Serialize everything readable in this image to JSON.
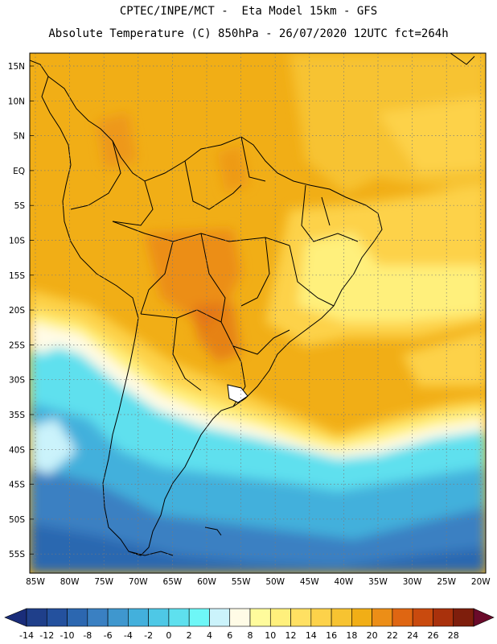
{
  "title": {
    "line1": "CPTEC/INPE/MCT -  Eta Model 15km - GFS",
    "line2": "Absolute Temperature (C) 850hPa - 26/07/2020 12UTC fct=264h"
  },
  "axes": {
    "lat_labels": [
      "15N",
      "10N",
      "5N",
      "EQ",
      "5S",
      "10S",
      "15S",
      "20S",
      "25S",
      "30S",
      "35S",
      "40S",
      "45S",
      "50S",
      "55S"
    ],
    "lon_labels": [
      "85W",
      "80W",
      "75W",
      "70W",
      "65W",
      "60W",
      "55W",
      "50W",
      "45W",
      "40W",
      "35W",
      "30W",
      "25W",
      "20W"
    ]
  },
  "colorbar": {
    "labels": [
      "-14",
      "-12",
      "-10",
      "-8",
      "-6",
      "-4",
      "-2",
      "0",
      "2",
      "4",
      "6",
      "8",
      "10",
      "12",
      "14",
      "16",
      "18",
      "20",
      "22",
      "24",
      "26",
      "28"
    ],
    "colors": [
      "#1f3f8a",
      "#24519e",
      "#2c67b0",
      "#3a80c2",
      "#3f97ce",
      "#43b0dc",
      "#4ec8e6",
      "#5ee0ee",
      "#6ef7f7",
      "#cbf3fb",
      "#fffbe6",
      "#fffb9c",
      "#fff07c",
      "#ffe062",
      "#fdd24a",
      "#f7c331",
      "#f1ae16",
      "#ec8e17",
      "#df6612",
      "#c94a0e",
      "#a9310c",
      "#7e1e0c"
    ],
    "under_color": "#1a2d7a",
    "over_color": "#6a0a2a"
  },
  "field_colors": {
    "ocean_north": "#f1ae16",
    "tropical_land": "#ec8e17",
    "subtropical": "#fdd24a",
    "warm_band": "#fff07c",
    "pale_band": "#fffbe6",
    "cyan": "#5ee0ee",
    "light_blue": "#43b0dc",
    "mid_blue": "#3a80c2",
    "deep_blue": "#2c67b0"
  }
}
